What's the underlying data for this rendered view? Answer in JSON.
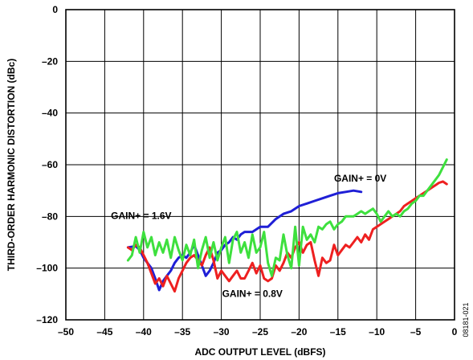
{
  "chart_data": {
    "type": "line",
    "title": "",
    "xlabel": "ADC OUTPUT LEVEL (dBFS)",
    "ylabel": "THIRD-ORDER HARMONIC DISTORTION (dBc)",
    "xlim": [
      -50,
      0
    ],
    "ylim": [
      -120,
      0
    ],
    "x_ticks": [
      -50,
      -45,
      -40,
      -35,
      -30,
      -25,
      -20,
      -15,
      -10,
      -5,
      0
    ],
    "x_tick_labels": [
      "–50",
      "–45",
      "–40",
      "–35",
      "–30",
      "–25",
      "–20",
      "–15",
      "–10",
      "–5",
      "0"
    ],
    "y_ticks": [
      0,
      -20,
      -40,
      -60,
      -80,
      -100,
      -120
    ],
    "y_tick_labels": [
      "0",
      "–20",
      "–40",
      "–60",
      "–80",
      "–100",
      "–120"
    ],
    "grid": true,
    "figure_code": "08181-021",
    "series": [
      {
        "name": "GAIN+ = 0V",
        "color": "#1f1fd6",
        "x": [
          -42,
          -41,
          -40.5,
          -40,
          -39,
          -38.5,
          -38,
          -37.5,
          -37,
          -36.5,
          -36,
          -35.5,
          -35,
          -34.5,
          -34,
          -33.5,
          -33,
          -32.5,
          -32,
          -31.5,
          -31,
          -30.5,
          -30,
          -29.5,
          -29,
          -28.5,
          -28,
          -27.5,
          -27,
          -26,
          -25,
          -24,
          -23,
          -22,
          -21,
          -20,
          -19,
          -18,
          -17,
          -16,
          -15,
          -14,
          -13,
          -12
        ],
        "y": [
          -92,
          -91.5,
          -93,
          -96,
          -100,
          -104,
          -108.5,
          -105,
          -103,
          -101,
          -98,
          -96,
          -95,
          -96,
          -94,
          -91,
          -95,
          -99,
          -103,
          -101,
          -98,
          -94,
          -93,
          -91,
          -90,
          -88,
          -89,
          -87,
          -86,
          -86,
          -84,
          -84,
          -81,
          -79,
          -78,
          -76,
          -75,
          -74,
          -73,
          -72,
          -71,
          -70.5,
          -70,
          -70.5
        ]
      },
      {
        "name": "GAIN+ = 0.8V",
        "color": "#ee2020",
        "x": [
          -42,
          -41.5,
          -41,
          -40.5,
          -40,
          -39.5,
          -39,
          -38.5,
          -38,
          -37.5,
          -37,
          -36.5,
          -36,
          -35.5,
          -35,
          -34.5,
          -34,
          -33.5,
          -33,
          -32.5,
          -32,
          -31.5,
          -31,
          -30.5,
          -30,
          -29.5,
          -29,
          -28.5,
          -28,
          -27.5,
          -27,
          -26.5,
          -26,
          -25.5,
          -25,
          -24.5,
          -24,
          -23.5,
          -23,
          -22.5,
          -22,
          -21.5,
          -21,
          -20.5,
          -20,
          -19.5,
          -19,
          -18.5,
          -18,
          -17.5,
          -17,
          -16.5,
          -16,
          -15.5,
          -15,
          -14.5,
          -14,
          -13.5,
          -13,
          -12.5,
          -12,
          -11.5,
          -11,
          -10.5,
          -10,
          -9.5,
          -9,
          -8.5,
          -8,
          -7.5,
          -7,
          -6.5,
          -6,
          -5.5,
          -5,
          -4.5,
          -4,
          -3.5,
          -3,
          -2.5,
          -2,
          -1.5,
          -1
        ],
        "y": [
          -92,
          -93,
          -91,
          -92,
          -95,
          -98,
          -102,
          -106,
          -104,
          -107,
          -103,
          -106,
          -109,
          -104,
          -101,
          -98,
          -96,
          -95,
          -97,
          -99,
          -95,
          -92,
          -97,
          -104,
          -101,
          -103,
          -105,
          -103,
          -101,
          -104,
          -104,
          -101,
          -98,
          -102,
          -99,
          -104,
          -105,
          -104,
          -99,
          -101,
          -98,
          -94,
          -96,
          -92,
          -90,
          -94,
          -91,
          -90,
          -97,
          -103,
          -96,
          -98,
          -97,
          -91,
          -95,
          -93,
          -91,
          -92,
          -90,
          -88,
          -90,
          -87,
          -89,
          -85,
          -84,
          -83,
          -82,
          -81,
          -80,
          -79,
          -78,
          -76,
          -75,
          -74,
          -73,
          -72,
          -71,
          -70,
          -69,
          -68,
          -67,
          -66.5,
          -67.5
        ]
      },
      {
        "name": "GAIN+ = 1.6V",
        "color": "#3ee03e",
        "x": [
          -42,
          -41.5,
          -41,
          -40.5,
          -40,
          -39.5,
          -39,
          -38.5,
          -38,
          -37.5,
          -37,
          -36.5,
          -36,
          -35.5,
          -35,
          -34.5,
          -34,
          -33.5,
          -33,
          -32.5,
          -32,
          -31.5,
          -31,
          -30.5,
          -30,
          -29.5,
          -29,
          -28.5,
          -28,
          -27.5,
          -27,
          -26.5,
          -26,
          -25.5,
          -25,
          -24.5,
          -24,
          -23.5,
          -23,
          -22.5,
          -22,
          -21.5,
          -21,
          -20.5,
          -20,
          -19.5,
          -19,
          -18.5,
          -18,
          -17.5,
          -17,
          -16.5,
          -16,
          -15.5,
          -15,
          -14.5,
          -14,
          -13.5,
          -13,
          -12.5,
          -12,
          -11.5,
          -11,
          -10.5,
          -10,
          -9.5,
          -9,
          -8.5,
          -8,
          -7.5,
          -7,
          -6.5,
          -6,
          -5.5,
          -5,
          -4.5,
          -4,
          -3.5,
          -3,
          -2.5,
          -2,
          -1.5,
          -1
        ],
        "y": [
          -97,
          -95,
          -88,
          -94,
          -86,
          -92,
          -88,
          -95,
          -90,
          -94,
          -89,
          -96,
          -88,
          -93,
          -97,
          -91,
          -95,
          -89,
          -100,
          -93,
          -88,
          -96,
          -90,
          -97,
          -92,
          -88,
          -98,
          -89,
          -86,
          -94,
          -90,
          -96,
          -87,
          -94,
          -92,
          -86,
          -98,
          -103,
          -96,
          -97,
          -87,
          -95,
          -100,
          -84,
          -99,
          -84,
          -89,
          -87,
          -90,
          -84,
          -85,
          -83,
          -82,
          -85,
          -83,
          -82,
          -80,
          -80,
          -80,
          -79,
          -78,
          -79,
          -78,
          -77,
          -79,
          -82,
          -80,
          -78,
          -80,
          -79,
          -80,
          -78,
          -77,
          -75,
          -74,
          -72,
          -72,
          -70,
          -68,
          -66,
          -64,
          -61,
          -58
        ]
      }
    ],
    "annotations": [
      {
        "text": "GAIN+ = 0V",
        "x": -15.5,
        "y": -66.5
      },
      {
        "text": "GAIN+ = 1.6V",
        "x": -44.2,
        "y": -81
      },
      {
        "text": "GAIN+ = 0.8V",
        "x": -29.9,
        "y": -111.2
      }
    ]
  }
}
